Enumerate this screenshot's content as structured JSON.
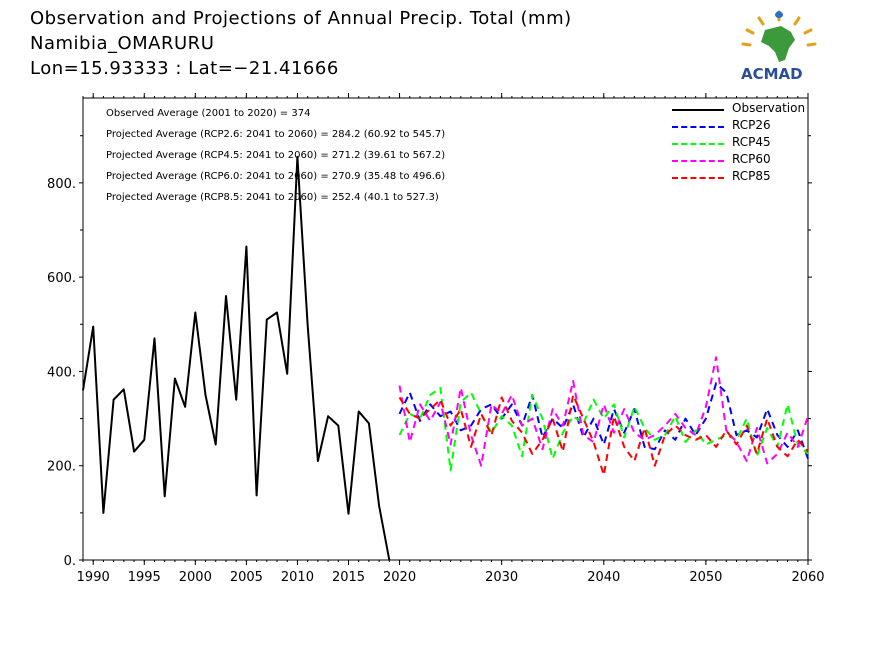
{
  "title": {
    "line1": "Observation and Projections of Annual Precip. Total (mm)",
    "line2": "Namibia_OMARURU",
    "line3": "Lon=15.93333 : Lat=−21.41666"
  },
  "logo": {
    "text": "ACMAD",
    "icon": "africa-logo-icon"
  },
  "stats": [
    "Observed Average (2001 to 2020) = 374",
    "Projected Average (RCP2.6: 2041 to 2060) = 284.2 (60.92 to 545.7)",
    "Projected Average (RCP4.5: 2041 to 2060) = 271.2 (39.61 to 567.2)",
    "Projected Average (RCP6.0: 2041 to 2060) = 270.9 (35.48 to 496.6)",
    "Projected Average (RCP8.5: 2041 to 2060) = 252.4 (40.1 to 527.3)"
  ],
  "legend": [
    {
      "label": "Observation",
      "color": "#000000",
      "dash": "solid"
    },
    {
      "label": "RCP26",
      "color": "#0000ff",
      "dash": "dashed"
    },
    {
      "label": "RCP45",
      "color": "#00ff00",
      "dash": "dashed"
    },
    {
      "label": "RCP60",
      "color": "#ff00ff",
      "dash": "dashed"
    },
    {
      "label": "RCP85",
      "color": "#ff0000",
      "dash": "dashed"
    }
  ],
  "chart_data": {
    "type": "line",
    "title": "Observation and Projections of Annual Precip. Total (mm)",
    "xlim": [
      1989,
      2060
    ],
    "ylim": [
      0,
      980
    ],
    "x_ticks": [
      1990,
      1995,
      2000,
      2005,
      2010,
      2015,
      2020,
      2030,
      2040,
      2050,
      2060
    ],
    "x_tick_labels": [
      "1990",
      "1995",
      "2000",
      "2005",
      "2010",
      "2015",
      "2020",
      "2030",
      "2040",
      "2050",
      "2060"
    ],
    "y_ticks": [
      0,
      200,
      400,
      600,
      800
    ],
    "y_tick_labels": [
      "0.",
      "200.",
      "400.",
      "600.",
      "800."
    ],
    "grid": false,
    "legend_position": "top-right",
    "series": [
      {
        "name": "Observation",
        "color": "#000000",
        "dash": "solid",
        "x": [
          1989,
          1990,
          1991,
          1992,
          1993,
          1994,
          1995,
          1996,
          1997,
          1998,
          1999,
          2000,
          2001,
          2002,
          2003,
          2004,
          2005,
          2006,
          2007,
          2008,
          2009,
          2010,
          2011,
          2012,
          2013,
          2014,
          2015,
          2016,
          2017,
          2018,
          2019,
          2020
        ],
        "y": [
          360,
          495,
          100,
          340,
          362,
          230,
          255,
          470,
          135,
          385,
          325,
          525,
          350,
          245,
          560,
          340,
          665,
          137,
          510,
          525,
          395,
          855,
          500,
          210,
          305,
          285,
          98,
          315,
          290,
          115,
          0,
          0
        ]
      },
      {
        "name": "RCP26",
        "color": "#0000ff",
        "dash": "dashed",
        "x": [
          2020,
          2021,
          2022,
          2023,
          2024,
          2025,
          2026,
          2027,
          2028,
          2029,
          2030,
          2031,
          2032,
          2033,
          2034,
          2035,
          2036,
          2037,
          2038,
          2039,
          2040,
          2041,
          2042,
          2043,
          2044,
          2045,
          2046,
          2047,
          2048,
          2049,
          2050,
          2051,
          2052,
          2053,
          2054,
          2055,
          2056,
          2057,
          2058,
          2059,
          2060
        ],
        "y": [
          310,
          355,
          295,
          330,
          305,
          315,
          275,
          285,
          320,
          330,
          300,
          330,
          285,
          350,
          260,
          300,
          280,
          330,
          260,
          300,
          245,
          320,
          270,
          320,
          240,
          235,
          275,
          255,
          300,
          265,
          300,
          375,
          355,
          265,
          275,
          260,
          320,
          265,
          240,
          275,
          215
        ]
      },
      {
        "name": "RCP45",
        "color": "#00ff00",
        "dash": "dashed",
        "x": [
          2020,
          2021,
          2022,
          2023,
          2024,
          2025,
          2026,
          2027,
          2028,
          2029,
          2030,
          2031,
          2032,
          2033,
          2034,
          2035,
          2036,
          2037,
          2038,
          2039,
          2040,
          2041,
          2042,
          2043,
          2044,
          2045,
          2046,
          2047,
          2048,
          2049,
          2050,
          2051,
          2052,
          2053,
          2054,
          2055,
          2056,
          2057,
          2058,
          2059,
          2060
        ],
        "y": [
          265,
          310,
          300,
          350,
          365,
          190,
          335,
          355,
          310,
          270,
          305,
          285,
          220,
          350,
          300,
          215,
          270,
          305,
          290,
          340,
          300,
          330,
          260,
          325,
          280,
          255,
          265,
          305,
          250,
          275,
          245,
          255,
          265,
          255,
          300,
          220,
          280,
          240,
          330,
          245,
          225
        ]
      },
      {
        "name": "RCP60",
        "color": "#ff00ff",
        "dash": "dashed",
        "x": [
          2020,
          2021,
          2022,
          2023,
          2024,
          2025,
          2026,
          2027,
          2028,
          2029,
          2030,
          2031,
          2032,
          2033,
          2034,
          2035,
          2036,
          2037,
          2038,
          2039,
          2040,
          2041,
          2042,
          2043,
          2044,
          2045,
          2046,
          2047,
          2048,
          2049,
          2050,
          2051,
          2052,
          2053,
          2054,
          2055,
          2056,
          2057,
          2058,
          2059,
          2060
        ],
        "y": [
          370,
          250,
          330,
          295,
          335,
          245,
          365,
          265,
          200,
          330,
          310,
          350,
          285,
          300,
          235,
          320,
          285,
          380,
          265,
          250,
          330,
          270,
          320,
          270,
          255,
          265,
          285,
          310,
          280,
          265,
          325,
          430,
          275,
          250,
          210,
          280,
          205,
          225,
          270,
          240,
          305
        ]
      },
      {
        "name": "RCP85",
        "color": "#ff0000",
        "dash": "dashed",
        "x": [
          2020,
          2021,
          2022,
          2023,
          2024,
          2025,
          2026,
          2027,
          2028,
          2029,
          2030,
          2031,
          2032,
          2033,
          2034,
          2035,
          2036,
          2037,
          2038,
          2039,
          2040,
          2041,
          2042,
          2043,
          2044,
          2045,
          2046,
          2047,
          2048,
          2049,
          2050,
          2051,
          2052,
          2053,
          2054,
          2055,
          2056,
          2057,
          2058,
          2059,
          2060
        ],
        "y": [
          345,
          310,
          300,
          320,
          340,
          285,
          320,
          240,
          310,
          265,
          345,
          295,
          270,
          225,
          255,
          300,
          230,
          350,
          300,
          250,
          180,
          305,
          240,
          210,
          280,
          200,
          265,
          285,
          265,
          255,
          265,
          240,
          275,
          245,
          285,
          225,
          300,
          240,
          220,
          255,
          230
        ]
      }
    ]
  }
}
